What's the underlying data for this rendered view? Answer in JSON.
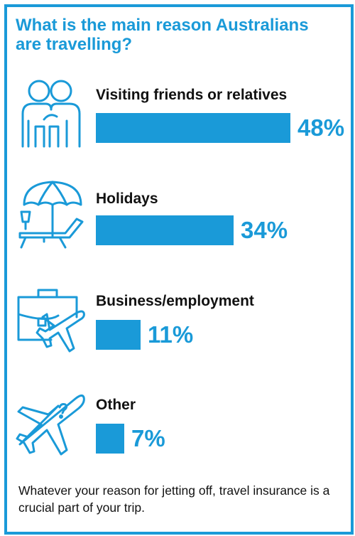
{
  "accent_color": "#1a9ad8",
  "title": "What is the main reason Australians are travelling?",
  "chart_data": {
    "type": "bar",
    "orientation": "horizontal",
    "title": "What is the main reason Australians are travelling?",
    "categories": [
      "Visiting friends or relatives",
      "Holidays",
      "Business/employment",
      "Other"
    ],
    "values": [
      48,
      34,
      11,
      7
    ],
    "value_labels": [
      "48%",
      "34%",
      "11%",
      "7%"
    ],
    "xlim": [
      0,
      48
    ],
    "grid": false,
    "icons": [
      "two-people-icon",
      "beach-umbrella-lounger-icon",
      "briefcase-plane-icon",
      "airplane-question-icon"
    ]
  },
  "footnote": "Whatever your reason for jetting off, travel insurance is a crucial part of your trip."
}
